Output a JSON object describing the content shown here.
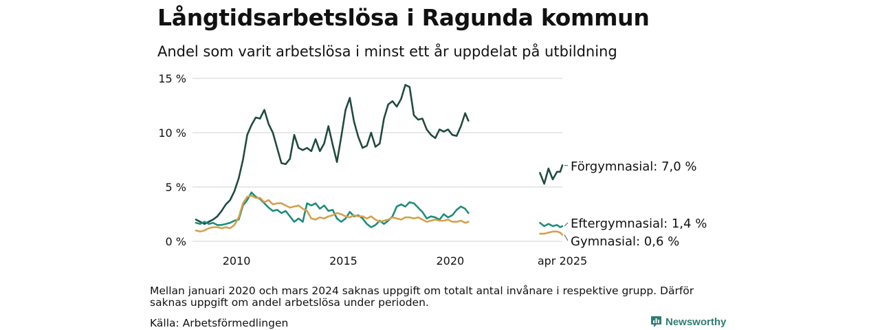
{
  "title": "Långtidsarbetslösa i Ragunda kommun",
  "subtitle": "Andel som varit arbetslösa i minst ett år uppdelat på utbildning",
  "note": "Mellan januari 2020 och mars 2024 saknas uppgift om totalt antal invånare i respektive grupp. Därför saknas uppgift om andel arbetslösa under perioden.",
  "source": "Källa: Arbetsförmedlingen",
  "brand": "Newsworthy",
  "chart_data": {
    "type": "line",
    "ylim": [
      0,
      15
    ],
    "yticks": [
      {
        "value": 15,
        "label": "15 %"
      },
      {
        "value": 10,
        "label": "10 %"
      },
      {
        "value": 5,
        "label": "5 %"
      },
      {
        "value": 0,
        "label": "0 %"
      }
    ],
    "xticks": [
      {
        "value": 2010,
        "label": "2010"
      },
      {
        "value": 2015,
        "label": "2015"
      },
      {
        "value": 2020,
        "label": "2020"
      },
      {
        "value": 2025.25,
        "label": "apr 2025"
      }
    ],
    "grid": true,
    "series": [
      {
        "name": "Förgymnasial",
        "end_label": "Förgymnasial: 7,0 %",
        "color": "#1f4a40",
        "segments": [
          [
            [
              2008.1,
              2.0
            ],
            [
              2008.3,
              1.8
            ],
            [
              2008.5,
              1.6
            ],
            [
              2008.7,
              1.8
            ],
            [
              2008.9,
              2.0
            ],
            [
              2009.1,
              2.3
            ],
            [
              2009.3,
              2.8
            ],
            [
              2009.5,
              3.4
            ],
            [
              2009.7,
              3.8
            ],
            [
              2009.9,
              4.6
            ],
            [
              2010.1,
              5.8
            ],
            [
              2010.3,
              7.5
            ],
            [
              2010.5,
              9.8
            ],
            [
              2010.7,
              10.7
            ],
            [
              2010.9,
              11.4
            ],
            [
              2011.1,
              11.3
            ],
            [
              2011.3,
              12.1
            ],
            [
              2011.5,
              10.8
            ],
            [
              2011.7,
              10.0
            ],
            [
              2011.9,
              8.6
            ],
            [
              2012.1,
              7.2
            ],
            [
              2012.3,
              7.1
            ],
            [
              2012.5,
              7.6
            ],
            [
              2012.7,
              9.8
            ],
            [
              2012.9,
              8.6
            ],
            [
              2013.1,
              8.4
            ],
            [
              2013.3,
              8.6
            ],
            [
              2013.5,
              8.3
            ],
            [
              2013.7,
              9.4
            ],
            [
              2013.9,
              8.3
            ],
            [
              2014.1,
              9.0
            ],
            [
              2014.3,
              10.6
            ],
            [
              2014.5,
              8.9
            ],
            [
              2014.7,
              7.3
            ],
            [
              2014.9,
              9.6
            ],
            [
              2015.1,
              12.1
            ],
            [
              2015.3,
              13.2
            ],
            [
              2015.5,
              11.0
            ],
            [
              2015.7,
              9.6
            ],
            [
              2015.9,
              8.6
            ],
            [
              2016.1,
              8.8
            ],
            [
              2016.3,
              10.0
            ],
            [
              2016.5,
              8.7
            ],
            [
              2016.7,
              9.0
            ],
            [
              2016.9,
              11.3
            ],
            [
              2017.1,
              12.6
            ],
            [
              2017.3,
              12.9
            ],
            [
              2017.5,
              12.4
            ],
            [
              2017.7,
              13.1
            ],
            [
              2017.9,
              14.4
            ],
            [
              2018.1,
              14.2
            ],
            [
              2018.3,
              11.6
            ],
            [
              2018.5,
              11.2
            ],
            [
              2018.7,
              11.3
            ],
            [
              2018.9,
              10.3
            ],
            [
              2019.1,
              9.8
            ],
            [
              2019.3,
              9.5
            ],
            [
              2019.5,
              10.3
            ],
            [
              2019.7,
              10.1
            ],
            [
              2019.9,
              10.3
            ],
            [
              2020.1,
              9.8
            ],
            [
              2020.3,
              9.7
            ],
            [
              2020.5,
              10.6
            ],
            [
              2020.7,
              11.8
            ],
            [
              2020.85,
              11.1
            ]
          ],
          [
            [
              2024.2,
              6.3
            ],
            [
              2024.4,
              5.3
            ],
            [
              2024.6,
              6.7
            ],
            [
              2024.8,
              5.7
            ],
            [
              2025.0,
              6.4
            ],
            [
              2025.15,
              6.4
            ],
            [
              2025.25,
              7.0
            ]
          ]
        ]
      },
      {
        "name": "Eftergymnasial",
        "end_label": "Eftergymnasial: 1,4 %",
        "color": "#1f8c7c",
        "segments": [
          [
            [
              2008.1,
              1.7
            ],
            [
              2008.3,
              1.6
            ],
            [
              2008.5,
              1.8
            ],
            [
              2008.7,
              1.6
            ],
            [
              2008.9,
              1.7
            ],
            [
              2009.1,
              1.5
            ],
            [
              2009.3,
              1.5
            ],
            [
              2009.5,
              1.6
            ],
            [
              2009.7,
              1.7
            ],
            [
              2009.9,
              1.9
            ],
            [
              2010.1,
              2.0
            ],
            [
              2010.3,
              3.3
            ],
            [
              2010.5,
              3.8
            ],
            [
              2010.7,
              4.5
            ],
            [
              2010.9,
              4.1
            ],
            [
              2011.1,
              3.9
            ],
            [
              2011.3,
              3.5
            ],
            [
              2011.5,
              3.1
            ],
            [
              2011.7,
              2.8
            ],
            [
              2011.9,
              2.9
            ],
            [
              2012.1,
              2.6
            ],
            [
              2012.3,
              2.8
            ],
            [
              2012.5,
              2.3
            ],
            [
              2012.7,
              1.8
            ],
            [
              2012.9,
              2.1
            ],
            [
              2013.1,
              1.8
            ],
            [
              2013.3,
              3.5
            ],
            [
              2013.5,
              3.3
            ],
            [
              2013.7,
              3.5
            ],
            [
              2013.9,
              3.0
            ],
            [
              2014.1,
              3.3
            ],
            [
              2014.3,
              2.8
            ],
            [
              2014.5,
              2.9
            ],
            [
              2014.7,
              2.1
            ],
            [
              2014.9,
              1.8
            ],
            [
              2015.1,
              2.1
            ],
            [
              2015.3,
              2.7
            ],
            [
              2015.5,
              2.3
            ],
            [
              2015.7,
              2.4
            ],
            [
              2015.9,
              2.1
            ],
            [
              2016.1,
              1.6
            ],
            [
              2016.3,
              1.3
            ],
            [
              2016.5,
              1.5
            ],
            [
              2016.7,
              1.9
            ],
            [
              2016.9,
              1.6
            ],
            [
              2017.1,
              1.9
            ],
            [
              2017.3,
              2.3
            ],
            [
              2017.5,
              3.2
            ],
            [
              2017.7,
              3.4
            ],
            [
              2017.9,
              3.2
            ],
            [
              2018.1,
              3.6
            ],
            [
              2018.3,
              3.5
            ],
            [
              2018.5,
              3.1
            ],
            [
              2018.7,
              2.7
            ],
            [
              2018.9,
              2.1
            ],
            [
              2019.1,
              2.3
            ],
            [
              2019.3,
              2.2
            ],
            [
              2019.5,
              2.0
            ],
            [
              2019.7,
              2.5
            ],
            [
              2019.9,
              2.2
            ],
            [
              2020.1,
              2.4
            ],
            [
              2020.3,
              2.9
            ],
            [
              2020.5,
              3.2
            ],
            [
              2020.7,
              3.0
            ],
            [
              2020.85,
              2.6
            ]
          ],
          [
            [
              2024.2,
              1.7
            ],
            [
              2024.4,
              1.4
            ],
            [
              2024.6,
              1.6
            ],
            [
              2024.8,
              1.4
            ],
            [
              2025.0,
              1.5
            ],
            [
              2025.15,
              1.3
            ],
            [
              2025.25,
              1.4
            ]
          ]
        ]
      },
      {
        "name": "Gymnasial",
        "end_label": "Gymnasial: 0,6 %",
        "color": "#d4a04a",
        "segments": [
          [
            [
              2008.1,
              1.0
            ],
            [
              2008.3,
              0.9
            ],
            [
              2008.5,
              1.0
            ],
            [
              2008.7,
              1.2
            ],
            [
              2008.9,
              1.3
            ],
            [
              2009.1,
              1.3
            ],
            [
              2009.3,
              1.2
            ],
            [
              2009.5,
              1.3
            ],
            [
              2009.7,
              1.2
            ],
            [
              2009.9,
              1.5
            ],
            [
              2010.1,
              2.2
            ],
            [
              2010.3,
              3.5
            ],
            [
              2010.5,
              4.1
            ],
            [
              2010.7,
              4.2
            ],
            [
              2010.9,
              4.0
            ],
            [
              2011.1,
              4.0
            ],
            [
              2011.3,
              3.6
            ],
            [
              2011.5,
              3.8
            ],
            [
              2011.7,
              3.4
            ],
            [
              2011.9,
              3.5
            ],
            [
              2012.1,
              3.5
            ],
            [
              2012.3,
              3.3
            ],
            [
              2012.5,
              3.1
            ],
            [
              2012.7,
              3.2
            ],
            [
              2012.9,
              3.3
            ],
            [
              2013.1,
              3.0
            ],
            [
              2013.3,
              2.8
            ],
            [
              2013.5,
              2.1
            ],
            [
              2013.7,
              2.0
            ],
            [
              2013.9,
              2.2
            ],
            [
              2014.1,
              2.1
            ],
            [
              2014.3,
              2.3
            ],
            [
              2014.5,
              2.4
            ],
            [
              2014.7,
              2.6
            ],
            [
              2014.9,
              2.5
            ],
            [
              2015.1,
              2.3
            ],
            [
              2015.3,
              2.2
            ],
            [
              2015.5,
              2.4
            ],
            [
              2015.7,
              2.3
            ],
            [
              2015.9,
              2.3
            ],
            [
              2016.1,
              2.1
            ],
            [
              2016.3,
              2.3
            ],
            [
              2016.5,
              2.0
            ],
            [
              2016.7,
              1.8
            ],
            [
              2016.9,
              1.9
            ],
            [
              2017.1,
              2.0
            ],
            [
              2017.3,
              2.2
            ],
            [
              2017.5,
              2.1
            ],
            [
              2017.7,
              2.0
            ],
            [
              2017.9,
              2.2
            ],
            [
              2018.1,
              2.2
            ],
            [
              2018.3,
              2.1
            ],
            [
              2018.5,
              2.2
            ],
            [
              2018.7,
              2.0
            ],
            [
              2018.9,
              1.8
            ],
            [
              2019.1,
              1.9
            ],
            [
              2019.3,
              2.0
            ],
            [
              2019.5,
              1.9
            ],
            [
              2019.7,
              1.9
            ],
            [
              2019.9,
              2.0
            ],
            [
              2020.1,
              1.8
            ],
            [
              2020.3,
              1.8
            ],
            [
              2020.5,
              1.9
            ],
            [
              2020.7,
              1.7
            ],
            [
              2020.85,
              1.8
            ]
          ],
          [
            [
              2024.2,
              0.7
            ],
            [
              2024.4,
              0.7
            ],
            [
              2024.6,
              0.8
            ],
            [
              2024.8,
              0.9
            ],
            [
              2025.0,
              0.9
            ],
            [
              2025.15,
              0.8
            ],
            [
              2025.25,
              0.6
            ]
          ]
        ]
      }
    ]
  }
}
